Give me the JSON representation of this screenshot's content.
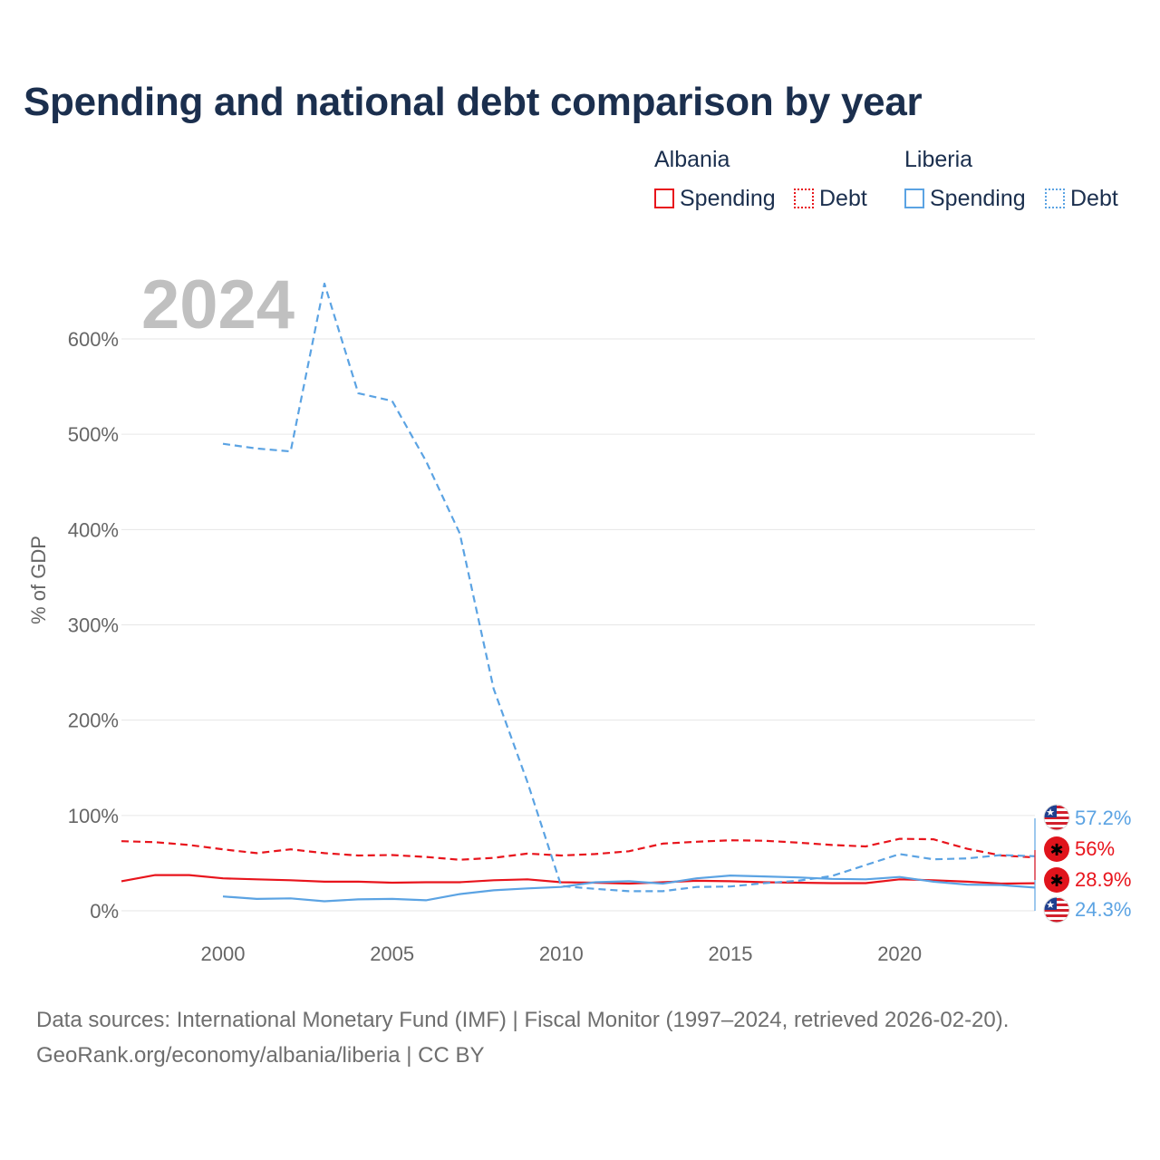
{
  "title": "Spending and national debt comparison by year",
  "legend": {
    "groups": [
      {
        "name": "Albania",
        "items": [
          {
            "label": "Spending",
            "style": "solid",
            "color": "#e8141c"
          },
          {
            "label": "Debt",
            "style": "dotted",
            "color": "#e8141c"
          }
        ]
      },
      {
        "name": "Liberia",
        "items": [
          {
            "label": "Spending",
            "style": "solid",
            "color": "#5ba3e3"
          },
          {
            "label": "Debt",
            "style": "dotted",
            "color": "#5ba3e3"
          }
        ]
      }
    ]
  },
  "year_overlay": "2024",
  "end_labels": {
    "liberia_debt": "57.2%",
    "albania_debt": "56%",
    "albania_spending": "28.9%",
    "liberia_spending": "24.3%"
  },
  "footer": {
    "line1": "Data sources: International Monetary Fund (IMF) | Fiscal Monitor (1997–2024, retrieved 2026-02-20).",
    "line2": "GeoRank.org/economy/albania/liberia | CC BY"
  },
  "colors": {
    "albania": "#e8141c",
    "liberia": "#5ba3e3",
    "grid": "#e6e6e6",
    "axis_text": "#666666"
  },
  "chart_data": {
    "type": "line",
    "title": "Spending and national debt comparison by year",
    "xlabel": "",
    "ylabel": "% of GDP",
    "xlim": [
      1997,
      2024
    ],
    "ylim": [
      0,
      600
    ],
    "x_ticks": [
      2000,
      2005,
      2010,
      2015,
      2020
    ],
    "y_ticks": [
      0,
      100,
      200,
      300,
      400,
      500,
      600
    ],
    "y_tick_labels": [
      "0%",
      "100%",
      "200%",
      "300%",
      "400%",
      "500%",
      "600%"
    ],
    "series": [
      {
        "name": "Albania Spending",
        "country": "albania",
        "style": "solid",
        "x": [
          1997,
          1998,
          1999,
          2000,
          2001,
          2002,
          2003,
          2004,
          2005,
          2006,
          2007,
          2008,
          2009,
          2010,
          2011,
          2012,
          2013,
          2014,
          2015,
          2016,
          2017,
          2018,
          2019,
          2020,
          2021,
          2022,
          2023,
          2024
        ],
        "values": [
          31,
          37.5,
          37.5,
          34,
          33,
          32,
          30.5,
          30.5,
          29.5,
          30,
          30,
          32,
          33,
          30,
          29.5,
          28.5,
          30,
          31.5,
          31,
          30,
          29.5,
          29,
          29,
          33,
          32,
          30.5,
          28.5,
          28.9
        ]
      },
      {
        "name": "Albania Debt",
        "country": "albania",
        "style": "dashed",
        "x": [
          1997,
          1998,
          1999,
          2000,
          2001,
          2002,
          2003,
          2004,
          2005,
          2006,
          2007,
          2008,
          2009,
          2010,
          2011,
          2012,
          2013,
          2014,
          2015,
          2016,
          2017,
          2018,
          2019,
          2020,
          2021,
          2022,
          2023,
          2024
        ],
        "values": [
          73,
          72,
          69,
          64.5,
          60.5,
          64.5,
          60.5,
          58,
          58.5,
          56.5,
          53.5,
          55.5,
          60,
          58,
          59.5,
          62.5,
          70.5,
          72.5,
          74,
          73.5,
          71.5,
          69,
          67.5,
          75.5,
          75,
          65,
          58,
          56
        ]
      },
      {
        "name": "Liberia Spending",
        "country": "liberia",
        "style": "solid",
        "x": [
          2000,
          2001,
          2002,
          2003,
          2004,
          2005,
          2006,
          2007,
          2008,
          2009,
          2010,
          2011,
          2012,
          2013,
          2014,
          2015,
          2016,
          2017,
          2018,
          2019,
          2020,
          2021,
          2022,
          2023,
          2024
        ],
        "values": [
          15,
          12.5,
          13,
          10,
          12,
          12.5,
          11,
          17.5,
          21.5,
          23.5,
          25,
          30,
          31,
          28.5,
          34,
          37,
          36,
          35,
          33.5,
          33,
          35.5,
          30.5,
          27.5,
          27,
          24.3
        ]
      },
      {
        "name": "Liberia Debt",
        "country": "liberia",
        "style": "dashed",
        "x": [
          2000,
          2001,
          2002,
          2003,
          2004,
          2005,
          2006,
          2007,
          2008,
          2009,
          2010,
          2011,
          2012,
          2013,
          2014,
          2015,
          2016,
          2017,
          2018,
          2019,
          2020,
          2021,
          2022,
          2023,
          2024
        ],
        "values": [
          490,
          485,
          482,
          658,
          543,
          535,
          472,
          396,
          233,
          135,
          26,
          23,
          20.5,
          20.5,
          25,
          25.5,
          29,
          31.5,
          36.5,
          48,
          59.5,
          54,
          55,
          58.5,
          57.2
        ]
      }
    ]
  }
}
